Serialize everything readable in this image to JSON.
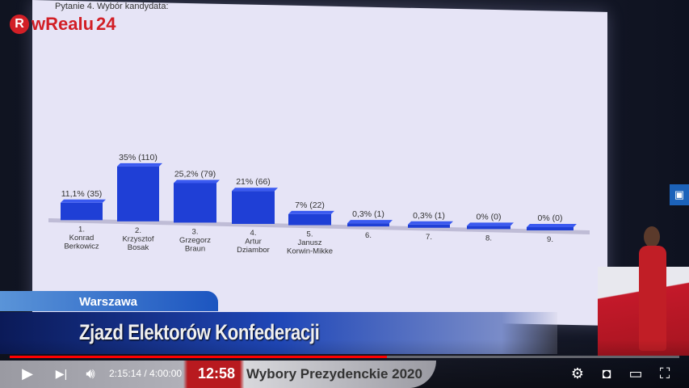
{
  "logo": {
    "text": "wRealu",
    "number": "24"
  },
  "slide": {
    "title": "Pytanie 4. Wybór kandydata:"
  },
  "chart_data": {
    "type": "bar",
    "title": "Pytanie 4. Wybór kandydata:",
    "categories": [
      [
        "1.",
        "Konrad",
        "Berkowicz"
      ],
      [
        "2.",
        "Krzysztof",
        "Bosak"
      ],
      [
        "3.",
        "Grzegorz",
        "Braun"
      ],
      [
        "4.",
        "Artur",
        "Dziambor"
      ],
      [
        "5.",
        "Janusz",
        "Korwin-Mikke"
      ],
      [
        "6."
      ],
      [
        "7."
      ],
      [
        "8."
      ],
      [
        "9."
      ]
    ],
    "values": [
      11.1,
      35,
      25.2,
      21,
      7,
      0.3,
      0.3,
      0,
      0
    ],
    "counts": [
      35,
      110,
      79,
      66,
      22,
      1,
      1,
      0,
      0
    ],
    "data_labels": [
      "11,1% (35)",
      "35% (110)",
      "25,2% (79)",
      "21% (66)",
      "7% (22)",
      "0,3% (1)",
      "0,3% (1)",
      "0% (0)",
      "0% (0)"
    ],
    "bar_color": "#1f3fd6"
  },
  "overlay": {
    "location": "Warszawa",
    "headline": "Zjazd Elektorów Konfederacji",
    "clock": "12:58",
    "subtitle": "Wybory Prezydenckie 2020"
  },
  "player": {
    "current_time": "2:15:14",
    "duration": "4:00:00",
    "time_display": "2:15:14 / 4:00:00",
    "progress": 0.563,
    "accent": "#ff0000"
  },
  "icons": {
    "play": "play-icon",
    "next": "next-icon",
    "volume": "volume-icon",
    "settings": "gear-icon",
    "miniplayer": "miniplayer-icon",
    "theater": "theater-icon",
    "fullscreen": "fullscreen-icon",
    "side": "cards-icon"
  }
}
